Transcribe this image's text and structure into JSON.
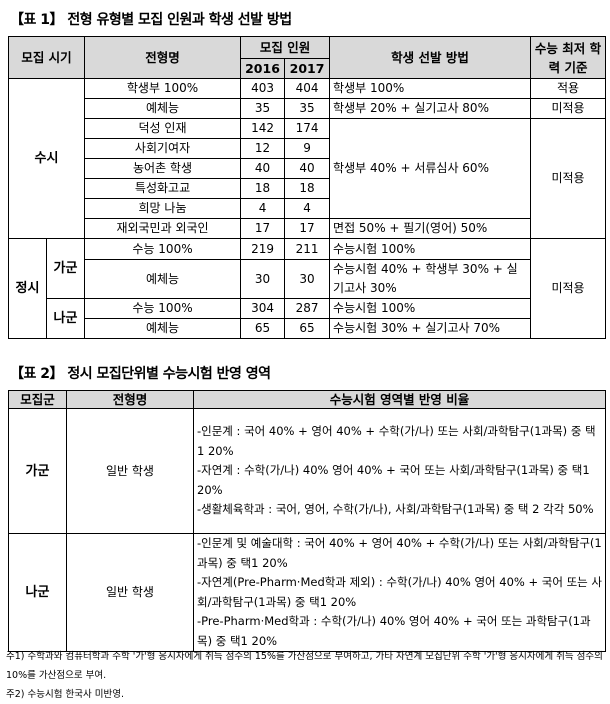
{
  "table1": {
    "title": "【표 1】 전형 유형별 모집 인원과 학생 선발 방법",
    "headers": {
      "period": "모집 시기",
      "name": "전형명",
      "count": "모집 인원",
      "y2016": "2016",
      "y2017": "2017",
      "method": "학생 선발 방법",
      "minimum": "수능 최저 학력 기준"
    },
    "susi": {
      "label": "수시",
      "rows": [
        {
          "name": "학생부 100%",
          "y2016": "403",
          "y2017": "404"
        },
        {
          "name": "예체능",
          "y2016": "35",
          "y2017": "35"
        },
        {
          "name": "덕성 인재",
          "y2016": "142",
          "y2017": "174"
        },
        {
          "name": "사회기여자",
          "y2016": "12",
          "y2017": "9"
        },
        {
          "name": "농어촌 학생",
          "y2016": "40",
          "y2017": "40"
        },
        {
          "name": "특성화고교",
          "y2016": "18",
          "y2017": "18"
        },
        {
          "name": "희망 나눔",
          "y2016": "4",
          "y2017": "4"
        },
        {
          "name": "재외국민과 외국인",
          "y2016": "17",
          "y2017": "17"
        }
      ],
      "methods": [
        "학생부 100%",
        "학생부 20% + 실기고사 80%",
        "학생부 40% + 서류심사 60%",
        "면접 50% + 필기(영어) 50%"
      ],
      "minimums": [
        "적용",
        "미적용",
        "미적용"
      ]
    },
    "jeongsi": {
      "label": "정시",
      "ga": "가군",
      "na": "나군",
      "rows": [
        {
          "name": "수능 100%",
          "y2016": "219",
          "y2017": "211",
          "method": "수능시험 100%"
        },
        {
          "name": "예체능",
          "y2016": "30",
          "y2017": "30",
          "method": "수능시험 40% + 학생부 30% + 실기고사 30%"
        },
        {
          "name": "수능 100%",
          "y2016": "304",
          "y2017": "287",
          "method": "수능시험 100%"
        },
        {
          "name": "예체능",
          "y2016": "65",
          "y2017": "65",
          "method": "수능시험 30% + 실기고사 70%"
        }
      ],
      "minimum": "미적용"
    }
  },
  "table2": {
    "title": "【표 2】 정시 모집단위별 수능시험 반영 영역",
    "headers": {
      "group": "모집군",
      "name": "전형명",
      "ratio": "수능시험 영역별 반영 비율"
    },
    "rows": [
      {
        "group": "가군",
        "name": "일반 학생",
        "lines": [
          "-인문계 : 국어 40% + 영어 40% + 수학(가/나) 또는 사회/과학탐구(1과목) 중 택1 20%",
          "-자연계 : 수학(가/나) 40% 영어 40% + 국어 또는 사회/과학탐구(1과목) 중 택1 20%",
          "-생활체육학과 : 국어, 영어, 수학(가/나), 사회/과학탐구(1과목) 중 택 2 각각 50%"
        ]
      },
      {
        "group": "나군",
        "name": "일반 학생",
        "lines": [
          "-인문계 및 예술대학 : 국어 40% + 영어 40% + 수학(가/나) 또는 사회/과학탐구(1과목) 중 택1 20%",
          "-자연계(Pre-Pharm·Med학과 제외) : 수학(가/나) 40% 영어 40% + 국어 또는 사회/과학탐구(1과목) 중 택1 20%",
          "-Pre-Pharm·Med학과 : 수학(가/나) 40% 영어 40% + 국어 또는 과학탐구(1과목) 중 택1 20%"
        ]
      }
    ]
  },
  "notes": [
    "주1) 수학과와 컴퓨터학과 수학 '가'형 응시자에게 취득 점수의 15%를 가산점으로 부여하고, 가타 자연계 모집단위 수학 '가'형 응시자에게 취득 점수의 10%를 가산점으로 부여.",
    "주2) 수능시험 한국사 미반영."
  ]
}
